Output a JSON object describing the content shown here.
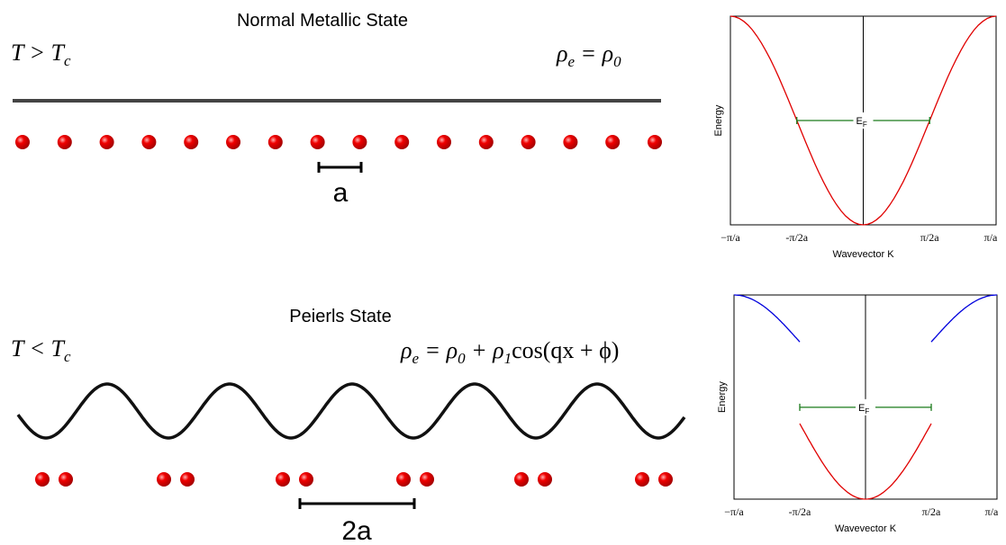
{
  "normal": {
    "title": "Normal Metallic State",
    "condition": [
      "T > T",
      "c"
    ],
    "density": [
      "ρ",
      "e",
      " = ρ",
      "0"
    ],
    "spacing": "a",
    "plot": {
      "ylabel": "Energy",
      "fermi": [
        "E",
        "F"
      ],
      "xticks": [
        "−π/a",
        "-π/2a",
        "π/2a",
        "π/a"
      ],
      "xlabel": "Wavevector K"
    }
  },
  "peierls": {
    "title": "Peierls State",
    "condition": [
      "T < T",
      "c"
    ],
    "density": [
      "ρ",
      "e",
      " = ρ",
      "0",
      " + ρ",
      "1",
      "cos(qx + ϕ)"
    ],
    "spacing": "2a",
    "plot": {
      "ylabel": "Energy",
      "fermi": [
        "E",
        "F"
      ],
      "xticks": [
        "−π/a",
        "-π/2a",
        "π/2a",
        "π/a"
      ],
      "xlabel": "Wavevector K"
    }
  }
}
